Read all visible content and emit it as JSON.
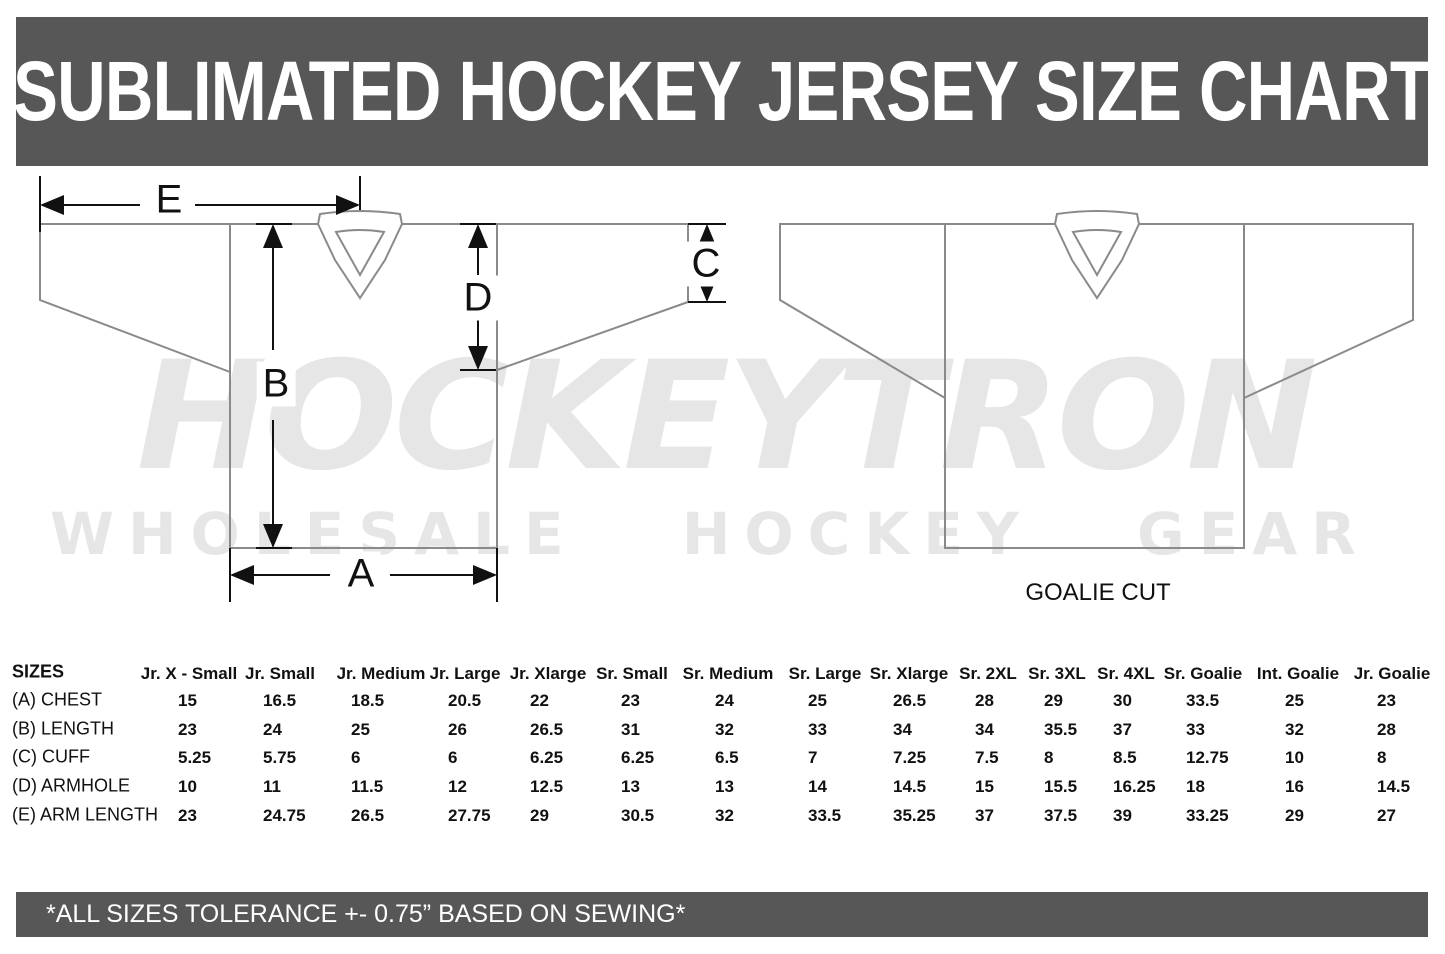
{
  "title": "SUBLIMATED HOCKEY JERSEY SIZE CHART",
  "watermark": {
    "brand": "HOCKEYTRON",
    "tagline": "WHOLESALE HOCKEY GEAR"
  },
  "diagram": {
    "labels": {
      "a": "A",
      "b": "B",
      "c": "C",
      "d": "D",
      "e": "E"
    },
    "goalie_label": "GOALIE CUT",
    "line_color": "#8a8a8a"
  },
  "table": {
    "corner": "SIZES",
    "columns": [
      "Jr. X - Small",
      "Jr. Small",
      "Jr. Medium",
      "Jr. Large",
      "Jr. Xlarge",
      "Sr. Small",
      "Sr. Medium",
      "Sr. Large",
      "Sr. Xlarge",
      "Sr. 2XL",
      "Sr. 3XL",
      "Sr. 4XL",
      "Sr. Goalie",
      "Int. Goalie",
      "Jr. Goalie"
    ],
    "rows": [
      {
        "label": "(A) CHEST",
        "values": [
          "15",
          "16.5",
          "18.5",
          "20.5",
          "22",
          "23",
          "24",
          "25",
          "26.5",
          "28",
          "29",
          "30",
          "33.5",
          "25",
          "23"
        ]
      },
      {
        "label": "(B) LENGTH",
        "values": [
          "23",
          "24",
          "25",
          "26",
          "26.5",
          "31",
          "32",
          "33",
          "34",
          "34",
          "35.5",
          "37",
          "33",
          "32",
          "28"
        ]
      },
      {
        "label": "(C) CUFF",
        "values": [
          "5.25",
          "5.75",
          "6",
          "6",
          "6.25",
          "6.25",
          "6.5",
          "7",
          "7.25",
          "7.5",
          "8",
          "8.5",
          "12.75",
          "10",
          "8"
        ]
      },
      {
        "label": "(D) ARMHOLE",
        "values": [
          "10",
          "11",
          "11.5",
          "12",
          "12.5",
          "13",
          "13",
          "14",
          "14.5",
          "15",
          "15.5",
          "16.25",
          "18",
          "16",
          "14.5"
        ]
      },
      {
        "label": "(E) ARM LENGTH",
        "values": [
          "23",
          "24.75",
          "26.5",
          "27.75",
          "29",
          "30.5",
          "32",
          "33.5",
          "35.25",
          "37",
          "37.5",
          "39",
          "33.25",
          "29",
          "27"
        ]
      }
    ]
  },
  "footer": "*ALL SIZES TOLERANCE +- 0.75” BASED ON SEWING*",
  "colors": {
    "bar": "#575757",
    "watermark": "#e6e6e6"
  }
}
